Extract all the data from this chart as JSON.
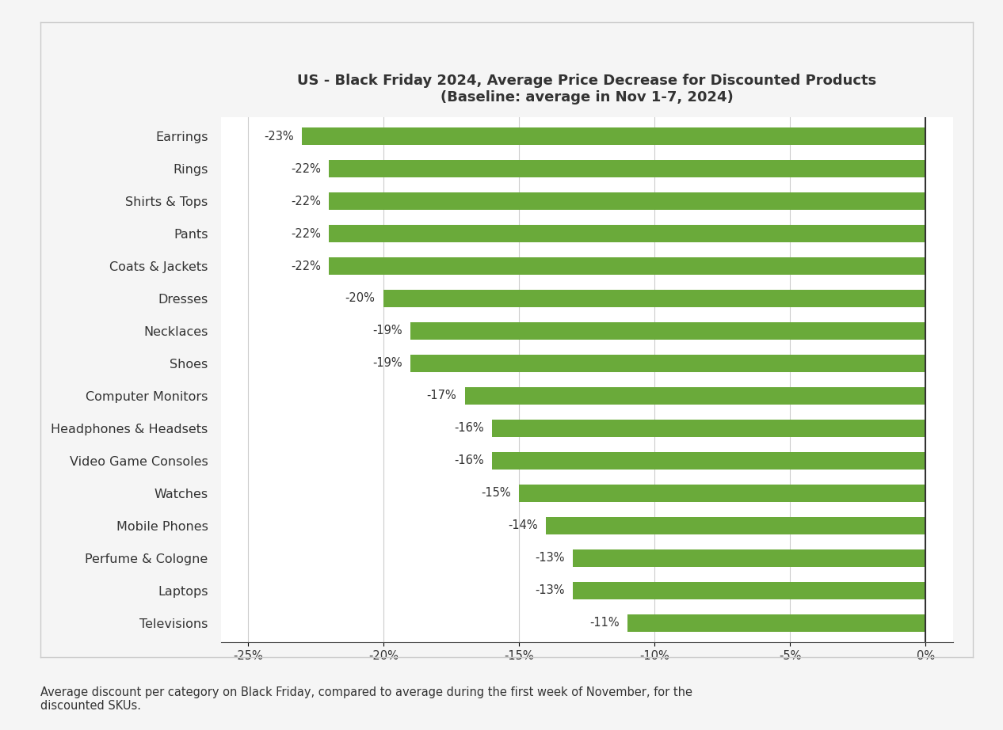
{
  "title_line1": "US - Black Friday 2024, Average Price Decrease for Discounted Products",
  "title_line2": "(Baseline: average in Nov 1-7, 2024)",
  "categories": [
    "Televisions",
    "Laptops",
    "Perfume & Cologne",
    "Mobile Phones",
    "Watches",
    "Video Game Consoles",
    "Headphones & Headsets",
    "Computer Monitors",
    "Shoes",
    "Necklaces",
    "Dresses",
    "Coats & Jackets",
    "Pants",
    "Shirts & Tops",
    "Rings",
    "Earrings"
  ],
  "values": [
    -11,
    -13,
    -13,
    -14,
    -15,
    -16,
    -16,
    -17,
    -19,
    -19,
    -20,
    -22,
    -22,
    -22,
    -22,
    -23
  ],
  "bar_color": "#6aaa3a",
  "label_color": "#333333",
  "background_color": "#f5f5f5",
  "chart_background": "#ffffff",
  "box_color": "#cccccc",
  "xlim": [
    -26,
    1.0
  ],
  "xticks": [
    -25,
    -20,
    -15,
    -10,
    -5,
    0
  ],
  "xtick_labels": [
    "-25%",
    "-20%",
    "-15%",
    "-10%",
    "-5%",
    "0%"
  ],
  "value_label_fontsize": 10.5,
  "category_fontsize": 11.5,
  "title_fontsize": 13,
  "caption": "Average discount per category on Black Friday, compared to average during the first week of November, for the\ndiscounted SKUs.",
  "grid_color": "#cccccc"
}
